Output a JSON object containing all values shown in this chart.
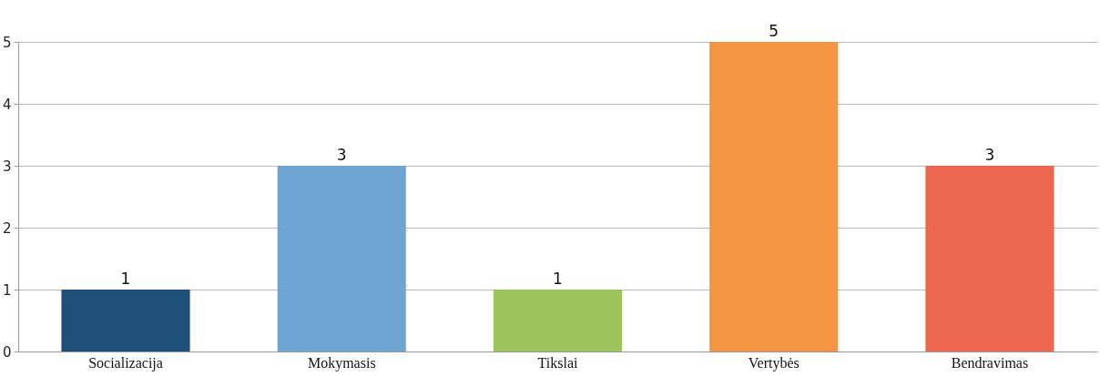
{
  "chart_data": {
    "type": "bar",
    "categories": [
      "Socializacija",
      "Mokymasis",
      "Tikslai",
      "Vertybės",
      "Bendravimas"
    ],
    "values": [
      1,
      3,
      1,
      5,
      3
    ],
    "colors": [
      "#1f4e79",
      "#6fa5d3",
      "#9bc45a",
      "#f39541",
      "#ec6650"
    ],
    "ylim": [
      0,
      5
    ],
    "yticks": [
      0,
      1,
      2,
      3,
      4,
      5
    ],
    "grid": "y",
    "data_labels": true
  }
}
